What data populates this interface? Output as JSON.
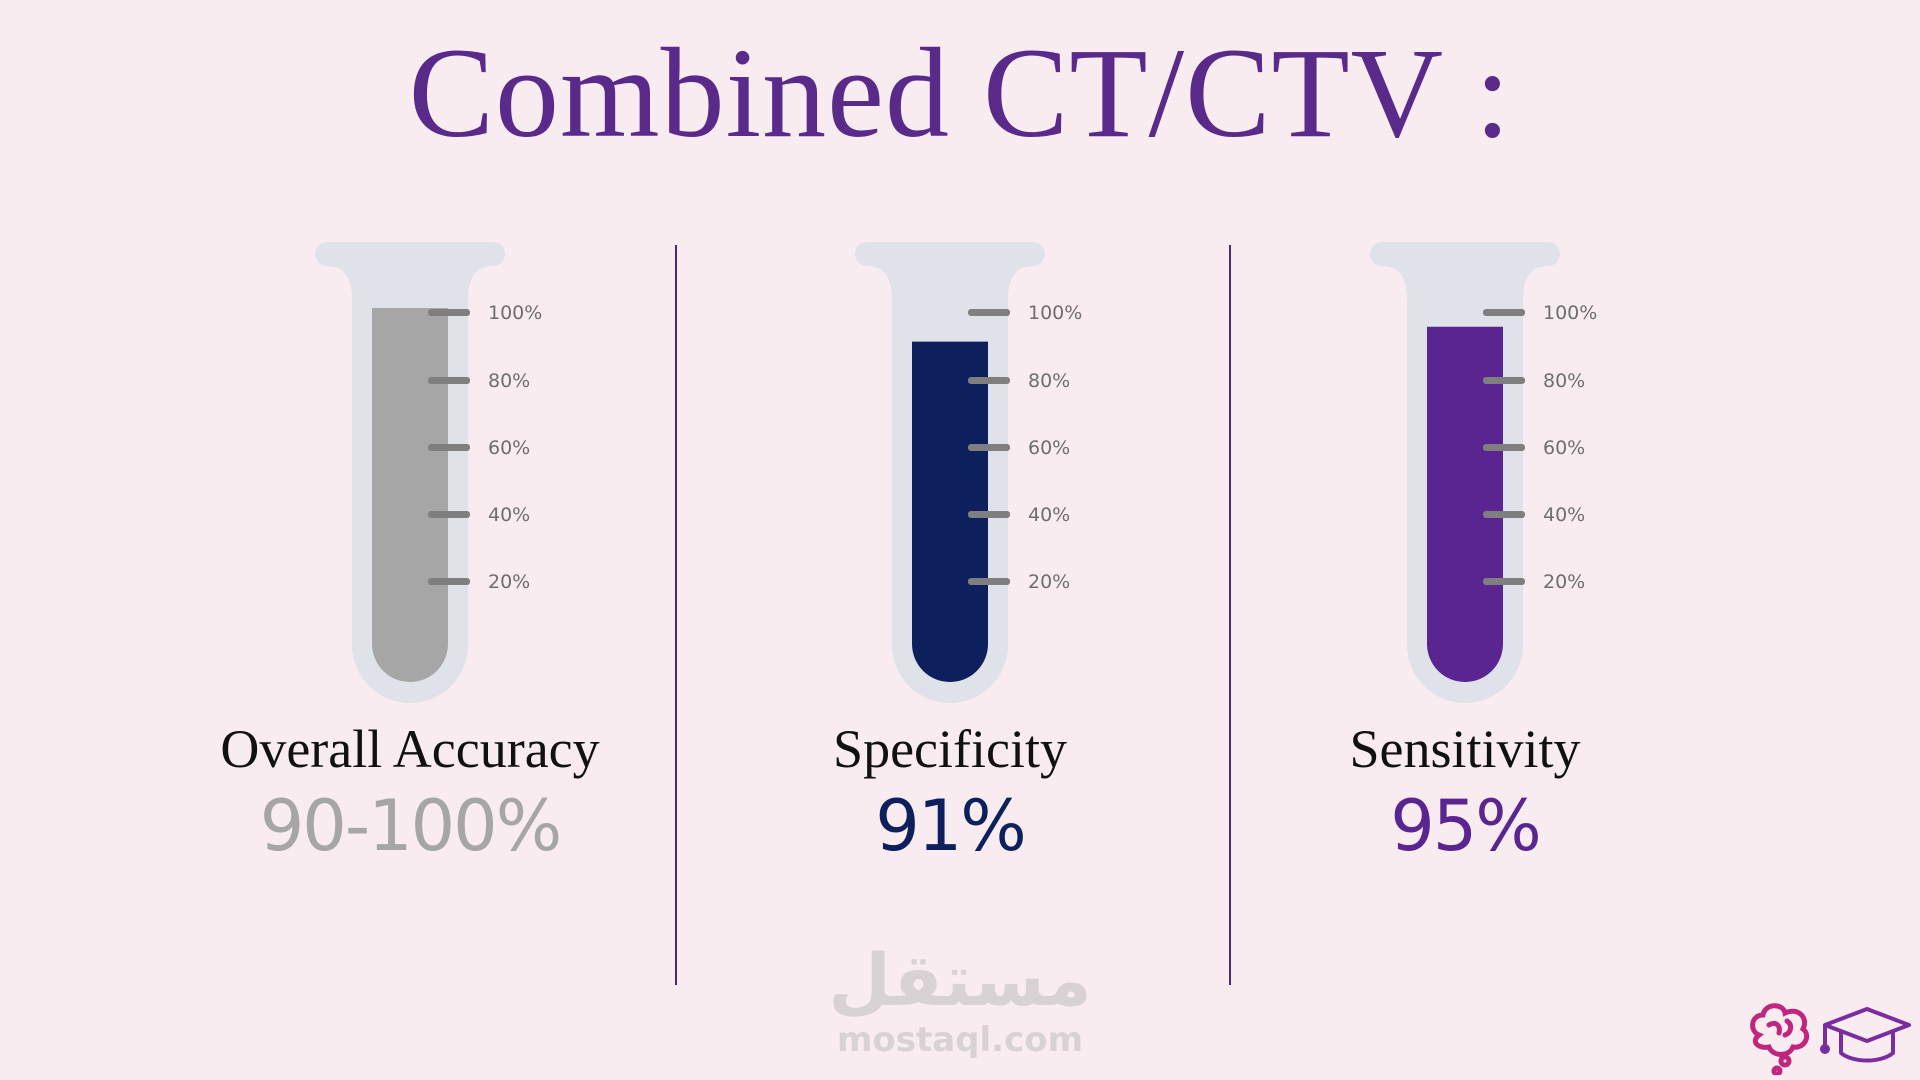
{
  "title": "Combined CT/CTV :",
  "tick_labels": [
    "100%",
    "80%",
    "60%",
    "40%",
    "20%"
  ],
  "metrics": [
    {
      "label": "Overall Accuracy",
      "value": "90-100%",
      "fill_fraction": 1.0,
      "color": "#a6a6a6"
    },
    {
      "label": "Specificity",
      "value": "91%",
      "fill_fraction": 0.91,
      "color": "#0d1f5c"
    },
    {
      "label": "Sensitivity",
      "value": "95%",
      "fill_fraction": 0.95,
      "color": "#5a2590"
    }
  ],
  "watermark": {
    "arabic": "مستقل",
    "url": "mostaql.com"
  },
  "colors": {
    "tube": "#dfe2e9",
    "tick": "#7f7f7f",
    "title": "#5a2a8a",
    "divider": "#4a2a80"
  },
  "logo_icons": [
    "brain-icon",
    "graduation-cap-icon"
  ]
}
